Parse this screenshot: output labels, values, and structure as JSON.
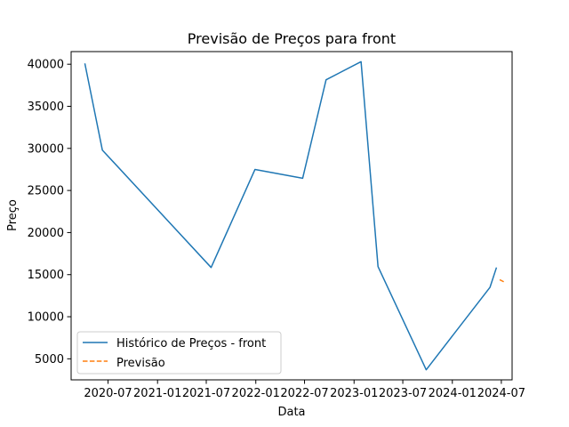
{
  "chart_data": {
    "type": "line",
    "title": "Previsão de Preços para front",
    "xlabel": "Data",
    "ylabel": "Preço",
    "x_type": "date",
    "xlim": [
      "2020-02-15",
      "2024-08-10"
    ],
    "ylim": [
      2500,
      41500
    ],
    "x_ticks": [
      {
        "date": "2020-07-01",
        "label": "2020-07"
      },
      {
        "date": "2021-01-01",
        "label": "2021-01"
      },
      {
        "date": "2021-07-01",
        "label": "2021-07"
      },
      {
        "date": "2022-01-01",
        "label": "2022-01"
      },
      {
        "date": "2022-07-01",
        "label": "2022-07"
      },
      {
        "date": "2023-01-01",
        "label": "2023-01"
      },
      {
        "date": "2023-07-01",
        "label": "2023-07"
      },
      {
        "date": "2024-01-01",
        "label": "2024-01"
      },
      {
        "date": "2024-07-01",
        "label": "2024-07"
      }
    ],
    "y_ticks": [
      5000,
      10000,
      15000,
      20000,
      25000,
      30000,
      35000,
      40000
    ],
    "grid": false,
    "legend_position": "lower-left",
    "series": [
      {
        "name": "Histórico de Preços - front",
        "color": "#1f77b4",
        "style": "solid",
        "points": [
          {
            "x": "2020-04-06",
            "y": 40100
          },
          {
            "x": "2020-06-10",
            "y": 29800
          },
          {
            "x": "2021-07-19",
            "y": 15850
          },
          {
            "x": "2021-12-29",
            "y": 27500
          },
          {
            "x": "2022-06-24",
            "y": 26450
          },
          {
            "x": "2022-09-19",
            "y": 38150
          },
          {
            "x": "2023-01-27",
            "y": 40300
          },
          {
            "x": "2023-03-31",
            "y": 15950
          },
          {
            "x": "2023-09-26",
            "y": 3700
          },
          {
            "x": "2024-05-20",
            "y": 13500
          },
          {
            "x": "2024-06-13",
            "y": 15850
          }
        ]
      },
      {
        "name": "Previsão",
        "color": "#ff7f0e",
        "style": "dashed",
        "points": [
          {
            "x": "2024-06-25",
            "y": 14400
          },
          {
            "x": "2024-07-10",
            "y": 14150
          }
        ]
      }
    ]
  }
}
